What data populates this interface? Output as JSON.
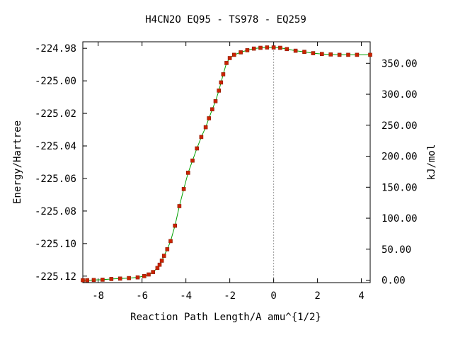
{
  "chart_data": {
    "type": "line",
    "title": "H4CN2O   EQ95 - TS978 - EQ259",
    "xlabel": "Reaction Path Length/A amu^{1/2}",
    "ylabel": "Energy/Hartree",
    "y2label": "kJ/mol",
    "xlim": [
      -8.7,
      4.4
    ],
    "ylim": [
      -225.124,
      -224.976
    ],
    "x_ticks": [
      -8,
      -6,
      -4,
      -2,
      0,
      2,
      4
    ],
    "x_tick_labels": [
      "-8",
      "-6",
      "-4",
      "-2",
      "0",
      "2",
      "4"
    ],
    "y_ticks": [
      -225.12,
      -225.1,
      -225.08,
      -225.06,
      -225.04,
      -225.02,
      -225.0,
      -224.98
    ],
    "y_tick_labels": [
      "-225.12",
      "-225.10",
      "-225.08",
      "-225.06",
      "-225.04",
      "-225.02",
      "-225.00",
      "-224.98"
    ],
    "y2_ticks": [
      0,
      50,
      100,
      150,
      200,
      250,
      300,
      350
    ],
    "y2_tick_labels": [
      "0.00",
      "50.00",
      "100.00",
      "150.00",
      "200.00",
      "250.00",
      "300.00",
      "350.00"
    ],
    "y2_zero_energy": -225.1225,
    "y2_kj_per_hartree": 2625.5,
    "ts_marker_x": 0,
    "grid": false,
    "colors": {
      "line": "#00a000",
      "marker": "#cc2200",
      "ts_line": "#999999"
    },
    "series": [
      {
        "x": [
          -8.7,
          -8.5,
          -8.2,
          -7.8,
          -7.4,
          -7.0,
          -6.6,
          -6.2,
          -5.9,
          -5.7,
          -5.5,
          -5.3,
          -5.2,
          -5.1,
          -5.0,
          -4.85,
          -4.7,
          -4.5,
          -4.3,
          -4.1,
          -3.9,
          -3.7,
          -3.5,
          -3.3,
          -3.1,
          -2.95,
          -2.8,
          -2.65,
          -2.5,
          -2.4,
          -2.3,
          -2.15,
          -2.0,
          -1.8,
          -1.5,
          -1.2,
          -0.9,
          -0.6,
          -0.3,
          0.0,
          0.3,
          0.6,
          1.0,
          1.4,
          1.8,
          2.2,
          2.6,
          3.0,
          3.4,
          3.8,
          4.4
        ],
        "y": [
          -225.1225,
          -225.1225,
          -225.1224,
          -225.1222,
          -225.1218,
          -225.1215,
          -225.1212,
          -225.1208,
          -225.12,
          -225.119,
          -225.1175,
          -225.115,
          -225.113,
          -225.1105,
          -225.1075,
          -225.1035,
          -225.0985,
          -225.089,
          -225.077,
          -225.0665,
          -225.0565,
          -225.049,
          -225.0415,
          -225.0345,
          -225.0285,
          -225.023,
          -225.0175,
          -225.0125,
          -225.006,
          -225.001,
          -224.996,
          -224.989,
          -224.986,
          -224.984,
          -224.9825,
          -224.9812,
          -224.9802,
          -224.9797,
          -224.9795,
          -224.9795,
          -224.9797,
          -224.9805,
          -224.9815,
          -224.9822,
          -224.983,
          -224.9835,
          -224.9838,
          -224.984,
          -224.984,
          -224.984,
          -224.984
        ]
      }
    ]
  }
}
